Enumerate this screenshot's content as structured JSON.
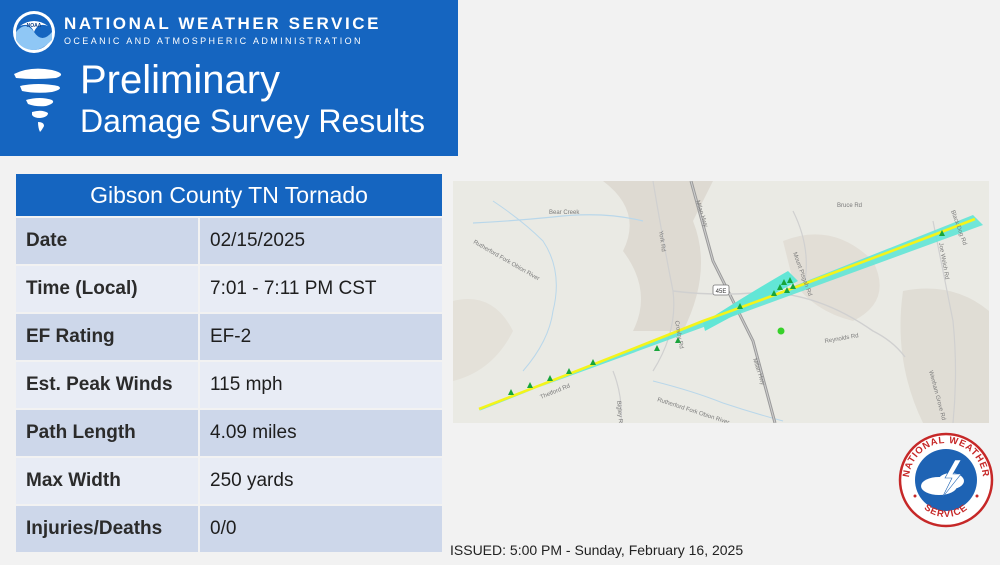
{
  "header": {
    "agency": "NATIONAL WEATHER SERVICE",
    "agency_sub": "OCEANIC AND ATMOSPHERIC ADMINISTRATION",
    "title": "Preliminary",
    "subtitle": "Damage Survey Results",
    "logo_icon": "noaa-logo",
    "tornado_icon": "tornado-icon"
  },
  "survey": {
    "title": "Gibson County TN Tornado",
    "rows": [
      {
        "label": "Date",
        "value": "02/15/2025"
      },
      {
        "label": "Time (Local)",
        "value": "7:01 - 7:11 PM CST"
      },
      {
        "label": "EF Rating",
        "value": "EF-2"
      },
      {
        "label": "Est. Peak Winds",
        "value": "115 mph"
      },
      {
        "label": "Path Length",
        "value": "4.09 miles"
      },
      {
        "label": "Max Width",
        "value": "250 yards"
      },
      {
        "label": "Injuries/Deaths",
        "value": "0/0"
      }
    ]
  },
  "map": {
    "roads": [
      "Bear Creek",
      "Rutherford Fork Obion River",
      "Milan Hwy",
      "Milan Hwy",
      "Thetford Rd",
      "Bigley Rd",
      "Reynolds Rd",
      "Mount Pisgah Rd",
      "Bruce Rd",
      "Black Dog Rd",
      "Wenham Grove Rd",
      "Joe Welch Rd",
      "Rutherford Fork Obion River",
      "York Rd",
      "Crosby Rd"
    ],
    "highway_shield": "45E",
    "colors": {
      "path_fill": "#62e6d6",
      "track_line": "#f4f41a",
      "damage_points": "#18a53a"
    }
  },
  "issued": "ISSUED: 5:00 PM - Sunday, February 16, 2025",
  "seal": {
    "text_top": "NATIONAL WEATHER",
    "text_bottom": "SERVICE",
    "icon": "nws-seal-icon"
  }
}
